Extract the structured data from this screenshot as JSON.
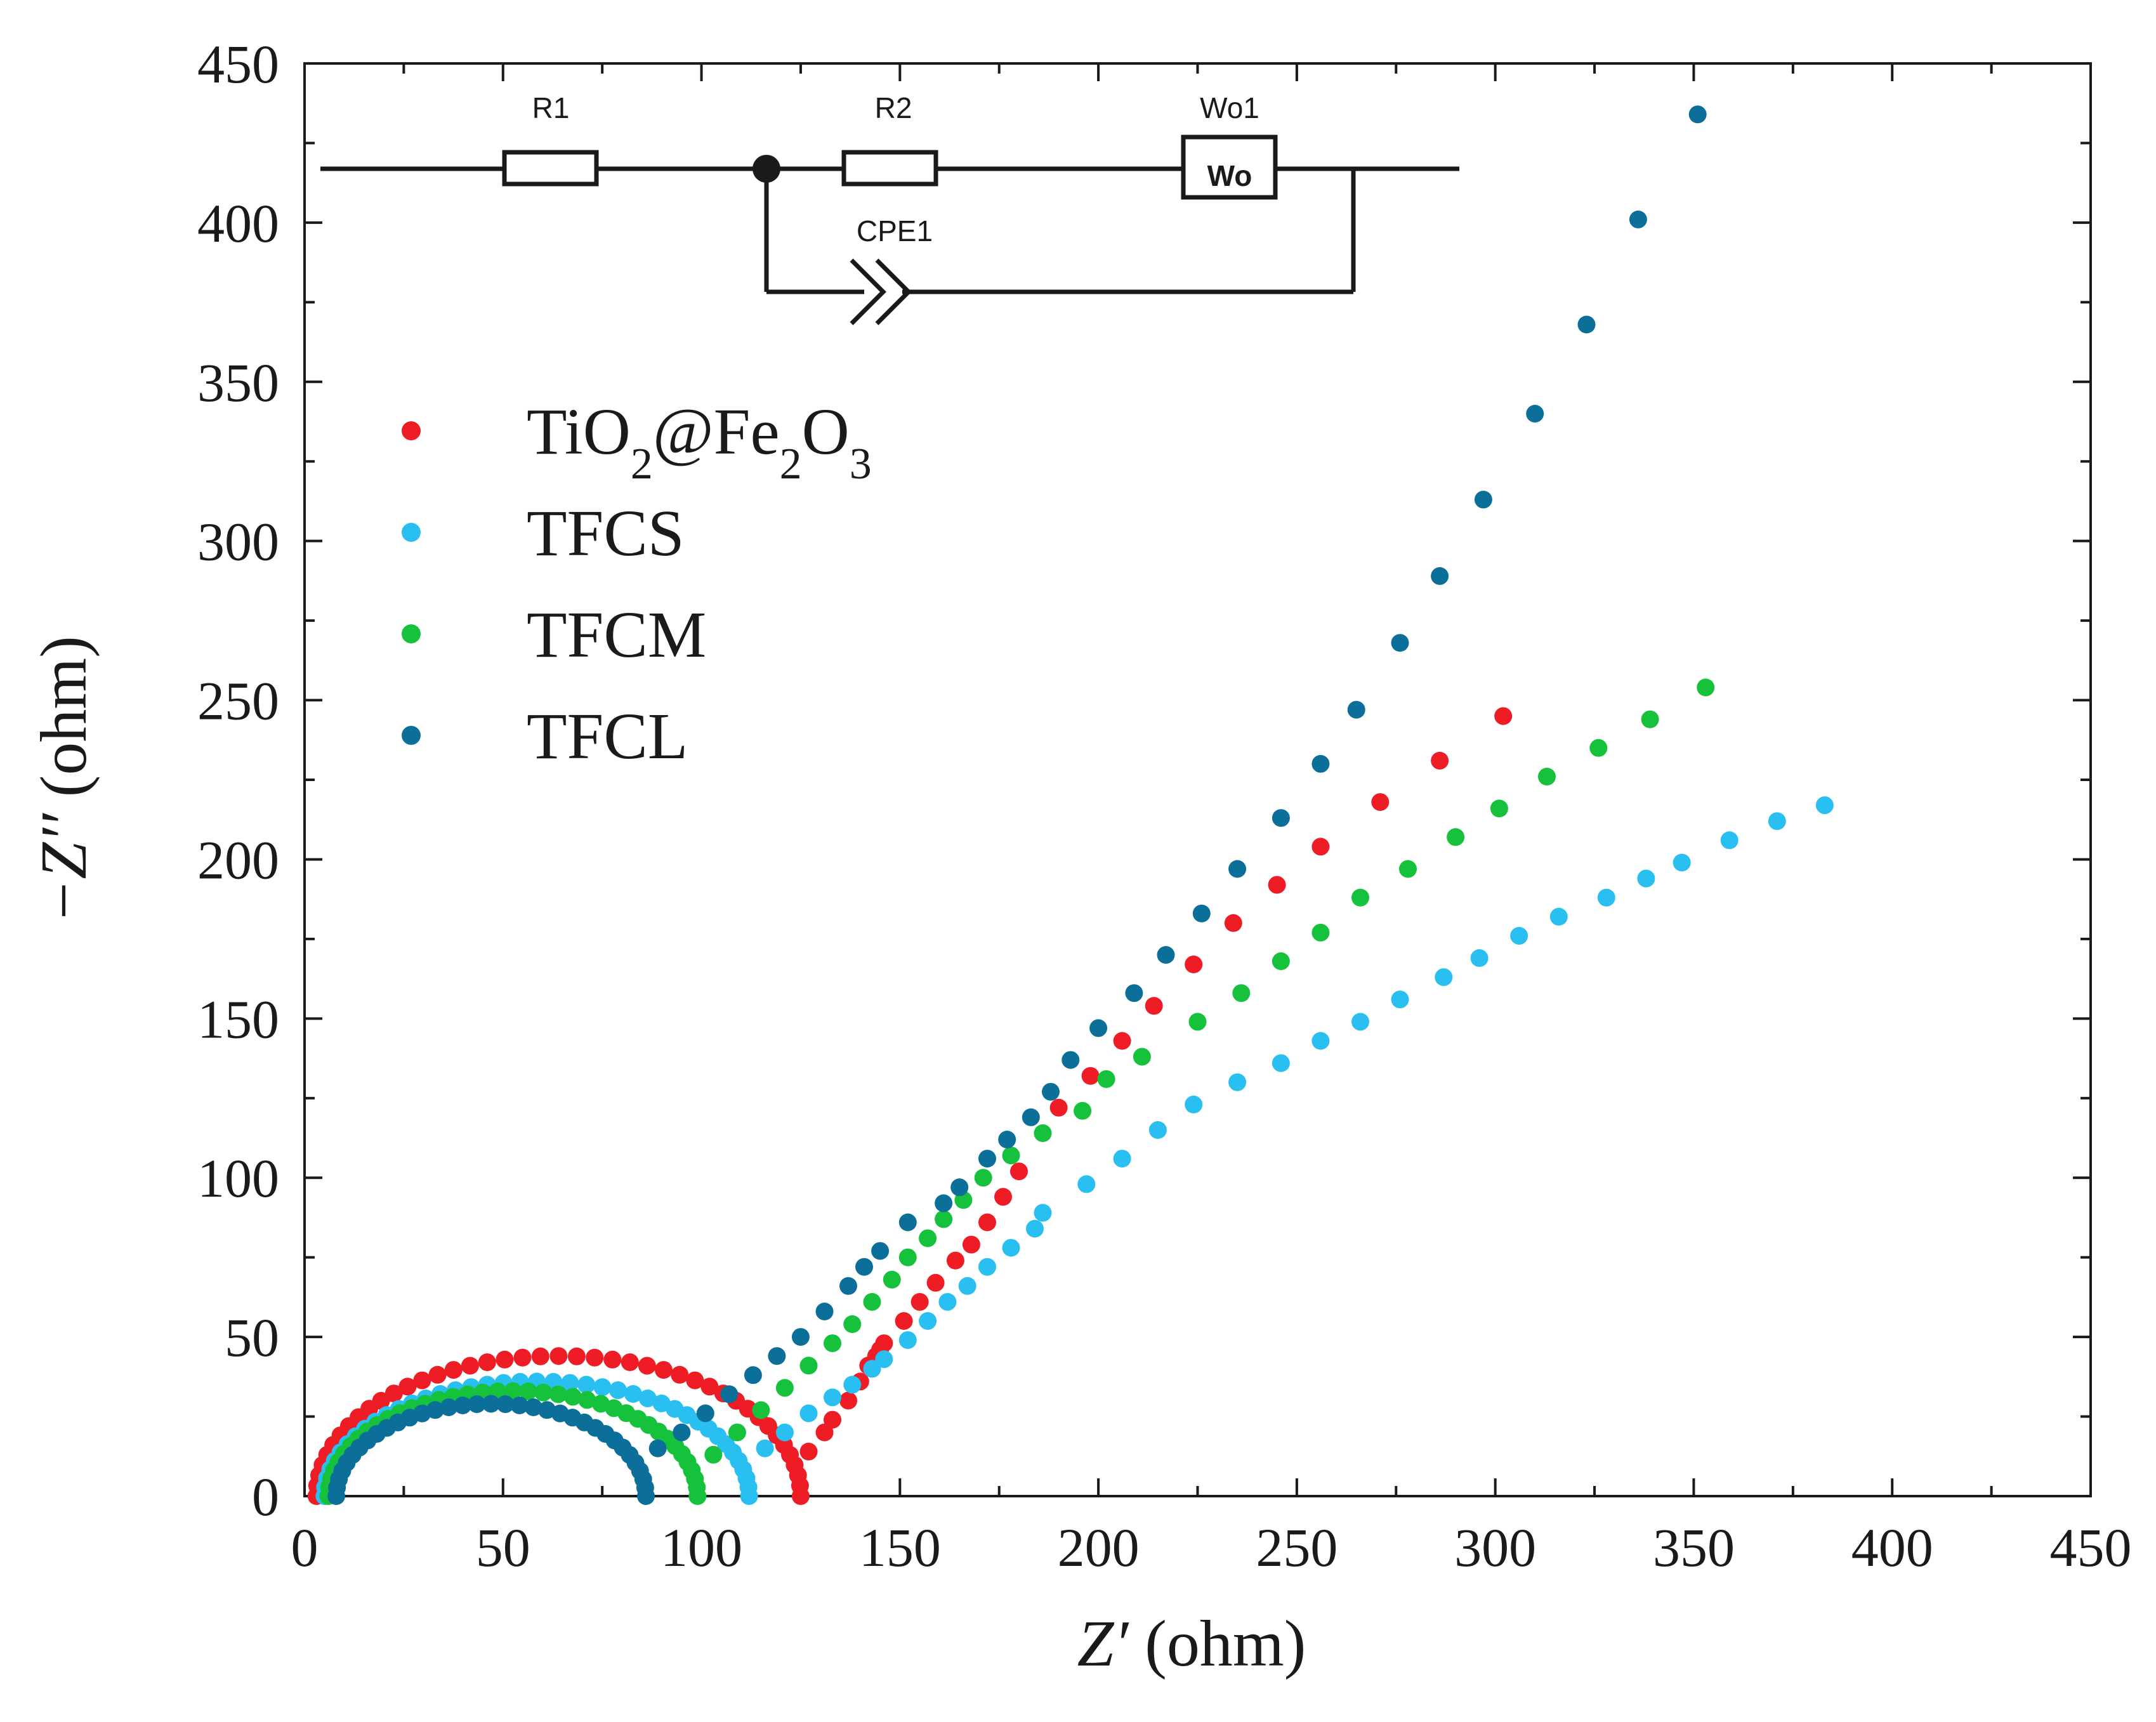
{
  "chart_data": {
    "type": "scatter",
    "title": "",
    "xlabel_var": "Z′",
    "xlabel_unit": "(ohm)",
    "ylabel_var": "−Z′′",
    "ylabel_unit": "(ohm)",
    "xlim": [
      0,
      450
    ],
    "ylim": [
      0,
      450
    ],
    "x_ticks": [
      0,
      50,
      100,
      150,
      200,
      250,
      300,
      350,
      400,
      450
    ],
    "y_ticks": [
      0,
      50,
      100,
      150,
      200,
      250,
      300,
      350,
      400,
      450
    ],
    "grid": false,
    "legend_position": "upper-left",
    "inset_circuit": {
      "elements": [
        "R1",
        "R2",
        "Wo1",
        "CPE1"
      ],
      "wo_box_text": "Wo",
      "topology": "R1 in series with (R2 + Wo1) in parallel with CPE1"
    },
    "series": [
      {
        "name": "TiO2@Fe2O3",
        "legend_parts": [
          [
            "Ti",
            "n"
          ],
          [
            "O",
            "n"
          ],
          [
            "2",
            "sub"
          ],
          [
            "@Fe",
            "n"
          ],
          [
            "2",
            "sub"
          ],
          [
            "O",
            "n"
          ],
          [
            "3",
            "sub"
          ]
        ],
        "color": "#ee1c25",
        "arc": {
          "start": 3,
          "end": 125,
          "peak": 44,
          "n": 42
        },
        "tail": [
          [
            127,
            14
          ],
          [
            131,
            20
          ],
          [
            133,
            24
          ],
          [
            137,
            30
          ],
          [
            140,
            36
          ],
          [
            142,
            41
          ],
          [
            144,
            44
          ],
          [
            145,
            46
          ],
          [
            146,
            48
          ],
          [
            151,
            55
          ],
          [
            155,
            61
          ],
          [
            159,
            67
          ],
          [
            164,
            74
          ],
          [
            168,
            79
          ],
          [
            172,
            86
          ],
          [
            176,
            94
          ],
          [
            180,
            102
          ],
          [
            190,
            122
          ],
          [
            198,
            132
          ],
          [
            206,
            143
          ],
          [
            214,
            154
          ],
          [
            224,
            167
          ],
          [
            234,
            180
          ],
          [
            245,
            192
          ],
          [
            256,
            204
          ],
          [
            271,
            218
          ],
          [
            286,
            231
          ],
          [
            302,
            245
          ]
        ]
      },
      {
        "name": "TFCS",
        "legend_parts": [
          [
            "TFCS",
            "n"
          ]
        ],
        "color": "#29bff0",
        "arc": {
          "start": 5,
          "end": 112,
          "peak": 36,
          "n": 40
        },
        "tail": [
          [
            116,
            15
          ],
          [
            121,
            20
          ],
          [
            127,
            26
          ],
          [
            133,
            31
          ],
          [
            138,
            35
          ],
          [
            143,
            40
          ],
          [
            146,
            43
          ],
          [
            152,
            49
          ],
          [
            157,
            55
          ],
          [
            162,
            61
          ],
          [
            167,
            66
          ],
          [
            172,
            72
          ],
          [
            178,
            78
          ],
          [
            184,
            84
          ],
          [
            186,
            89
          ],
          [
            197,
            98
          ],
          [
            206,
            106
          ],
          [
            215,
            115
          ],
          [
            224,
            123
          ],
          [
            235,
            130
          ],
          [
            246,
            136
          ],
          [
            256,
            143
          ],
          [
            266,
            149
          ],
          [
            276,
            156
          ],
          [
            287,
            163
          ],
          [
            296,
            169
          ],
          [
            306,
            176
          ],
          [
            316,
            182
          ],
          [
            328,
            188
          ],
          [
            338,
            194
          ],
          [
            347,
            199
          ],
          [
            359,
            206
          ],
          [
            371,
            212
          ],
          [
            383,
            217
          ]
        ]
      },
      {
        "name": "TFCM",
        "legend_parts": [
          [
            "TFCM",
            "n"
          ]
        ],
        "color": "#16c13b",
        "arc": {
          "start": 6,
          "end": 99,
          "peak": 33,
          "n": 38
        },
        "tail": [
          [
            103,
            13
          ],
          [
            109,
            20
          ],
          [
            115,
            27
          ],
          [
            121,
            34
          ],
          [
            127,
            41
          ],
          [
            133,
            48
          ],
          [
            138,
            54
          ],
          [
            143,
            61
          ],
          [
            148,
            68
          ],
          [
            152,
            75
          ],
          [
            157,
            81
          ],
          [
            161,
            87
          ],
          [
            166,
            93
          ],
          [
            171,
            100
          ],
          [
            178,
            107
          ],
          [
            186,
            114
          ],
          [
            196,
            121
          ],
          [
            202,
            131
          ],
          [
            211,
            138
          ],
          [
            225,
            149
          ],
          [
            236,
            158
          ],
          [
            246,
            168
          ],
          [
            256,
            177
          ],
          [
            266,
            188
          ],
          [
            278,
            197
          ],
          [
            290,
            207
          ],
          [
            301,
            216
          ],
          [
            313,
            226
          ],
          [
            326,
            235
          ],
          [
            339,
            244
          ],
          [
            353,
            254
          ]
        ]
      },
      {
        "name": "TFCL",
        "legend_parts": [
          [
            "TFCL",
            "n"
          ]
        ],
        "color": "#0c6f9a",
        "arc": {
          "start": 8,
          "end": 86,
          "peak": 29,
          "n": 34
        },
        "tail": [
          [
            89,
            15
          ],
          [
            95,
            20
          ],
          [
            101,
            26
          ],
          [
            107,
            32
          ],
          [
            113,
            38
          ],
          [
            119,
            44
          ],
          [
            125,
            50
          ],
          [
            131,
            58
          ],
          [
            137,
            66
          ],
          [
            141,
            72
          ],
          [
            145,
            77
          ],
          [
            152,
            86
          ],
          [
            161,
            92
          ],
          [
            165,
            97
          ],
          [
            172,
            106
          ],
          [
            177,
            112
          ],
          [
            183,
            119
          ],
          [
            188,
            127
          ],
          [
            193,
            137
          ],
          [
            200,
            147
          ],
          [
            209,
            158
          ],
          [
            217,
            170
          ],
          [
            226,
            183
          ],
          [
            235,
            197
          ],
          [
            246,
            213
          ],
          [
            256,
            230
          ],
          [
            265,
            247
          ],
          [
            276,
            268
          ],
          [
            286,
            289
          ],
          [
            297,
            313
          ],
          [
            310,
            340
          ],
          [
            323,
            368
          ],
          [
            336,
            401
          ],
          [
            351,
            434
          ]
        ]
      }
    ]
  }
}
